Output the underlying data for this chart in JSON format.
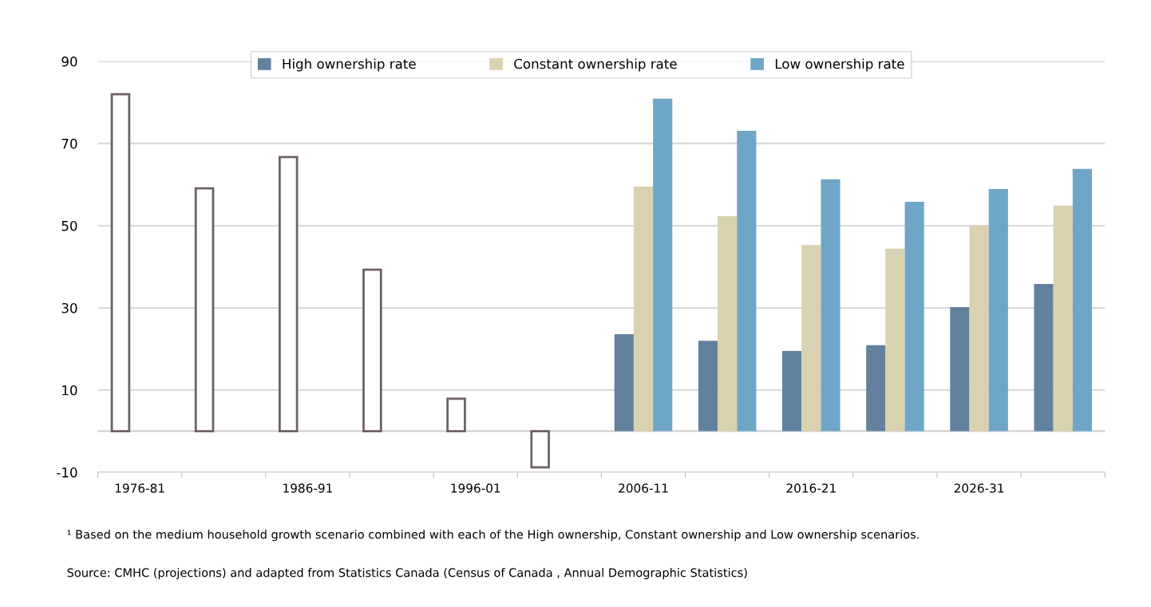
{
  "chart_data": {
    "type": "bar",
    "categories": [
      "1976-81",
      null,
      "1986-91",
      null,
      "1996-01",
      null,
      "2006-11",
      null,
      "2016-21",
      null,
      "2026-31",
      null
    ],
    "series": [
      {
        "color": "#ffffff",
        "values": [
          82.0,
          59.1,
          66.7,
          39.3,
          7.9,
          -8.8,
          null,
          null,
          null,
          null,
          null,
          null
        ]
      },
      {
        "name": "High ownership rate",
        "color": "#62819f",
        "values": [
          null,
          null,
          null,
          null,
          null,
          null,
          23.6,
          22.0,
          19.5,
          20.9,
          30.2,
          35.8
        ]
      },
      {
        "name": "Constant ownership rate",
        "color": "#d9d2b0",
        "values": [
          null,
          null,
          null,
          null,
          null,
          null,
          59.5,
          52.3,
          45.3,
          44.4,
          50.0,
          54.9
        ]
      },
      {
        "name": "Low ownership rate",
        "color": "#6fa6c8",
        "values": [
          null,
          null,
          null,
          null,
          null,
          null,
          80.9,
          73.1,
          61.3,
          55.8,
          58.9,
          63.8
        ]
      }
    ],
    "ylim": [
      -10,
      90
    ],
    "yticks": [
      90,
      70,
      50,
      30,
      10,
      -10
    ],
    "grid": "y",
    "legend": "top",
    "annotations": [
      "¹ Based on the medium household growth scenario combined with each of the High ownership, Constant ownership and Low ownership scenarios.",
      "Source: CMHC (projections) and adapted from Statistics Canada (Census of Canada , Annual Demographic Statistics)"
    ]
  }
}
